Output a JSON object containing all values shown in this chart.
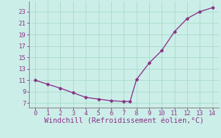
{
  "x": [
    0,
    1,
    2,
    3,
    4,
    5,
    6,
    7,
    7.5,
    8,
    9,
    10,
    11,
    12,
    13,
    14
  ],
  "y": [
    11.0,
    10.3,
    9.6,
    8.8,
    8.0,
    7.7,
    7.4,
    7.3,
    7.3,
    11.1,
    14.0,
    16.2,
    19.5,
    21.8,
    23.0,
    23.7
  ],
  "line_color": "#883388",
  "marker": "D",
  "marker_size": 2.5,
  "background_color": "#cceee8",
  "grid_color": "#aaddcc",
  "spine_color": "#888888",
  "xlabel": "Windchill (Refroidissement éolien,°C)",
  "xlabel_color": "#883388",
  "xlabel_fontsize": 7.5,
  "tick_color": "#883388",
  "tick_labelsize": 6.5,
  "yticks": [
    7,
    9,
    11,
    13,
    15,
    17,
    19,
    21,
    23
  ],
  "xticks": [
    0,
    1,
    2,
    3,
    4,
    5,
    6,
    7,
    8,
    9,
    10,
    11,
    12,
    13,
    14
  ],
  "ylim": [
    6.2,
    24.8
  ],
  "xlim": [
    -0.5,
    14.5
  ]
}
